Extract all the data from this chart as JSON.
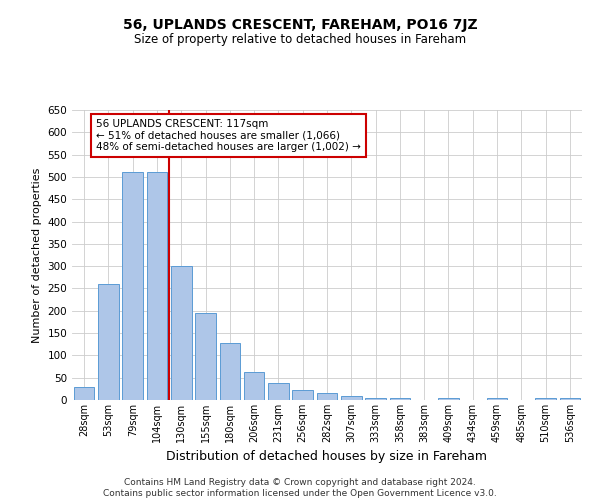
{
  "title": "56, UPLANDS CRESCENT, FAREHAM, PO16 7JZ",
  "subtitle": "Size of property relative to detached houses in Fareham",
  "xlabel": "Distribution of detached houses by size in Fareham",
  "ylabel": "Number of detached properties",
  "categories": [
    "28sqm",
    "53sqm",
    "79sqm",
    "104sqm",
    "130sqm",
    "155sqm",
    "180sqm",
    "206sqm",
    "231sqm",
    "256sqm",
    "282sqm",
    "307sqm",
    "333sqm",
    "358sqm",
    "383sqm",
    "409sqm",
    "434sqm",
    "459sqm",
    "485sqm",
    "510sqm",
    "536sqm"
  ],
  "values": [
    30,
    260,
    510,
    510,
    300,
    195,
    128,
    62,
    38,
    22,
    15,
    10,
    5,
    4,
    0,
    5,
    0,
    5,
    0,
    4,
    4
  ],
  "bar_color": "#aec6e8",
  "bar_edge_color": "#5b9bd5",
  "vline_x": 3.5,
  "vline_color": "#cc0000",
  "annotation_line1": "56 UPLANDS CRESCENT: 117sqm",
  "annotation_line2": "← 51% of detached houses are smaller (1,066)",
  "annotation_line3": "48% of semi-detached houses are larger (1,002) →",
  "annotation_box_color": "#ffffff",
  "annotation_box_edge_color": "#cc0000",
  "ylim": [
    0,
    650
  ],
  "yticks": [
    0,
    50,
    100,
    150,
    200,
    250,
    300,
    350,
    400,
    450,
    500,
    550,
    600,
    650
  ],
  "footer_line1": "Contains HM Land Registry data © Crown copyright and database right 2024.",
  "footer_line2": "Contains public sector information licensed under the Open Government Licence v3.0.",
  "background_color": "#ffffff",
  "grid_color": "#cccccc",
  "title_fontsize": 10,
  "subtitle_fontsize": 8.5,
  "ylabel_fontsize": 8,
  "xlabel_fontsize": 9,
  "tick_fontsize": 7,
  "annotation_fontsize": 7.5,
  "footer_fontsize": 6.5
}
